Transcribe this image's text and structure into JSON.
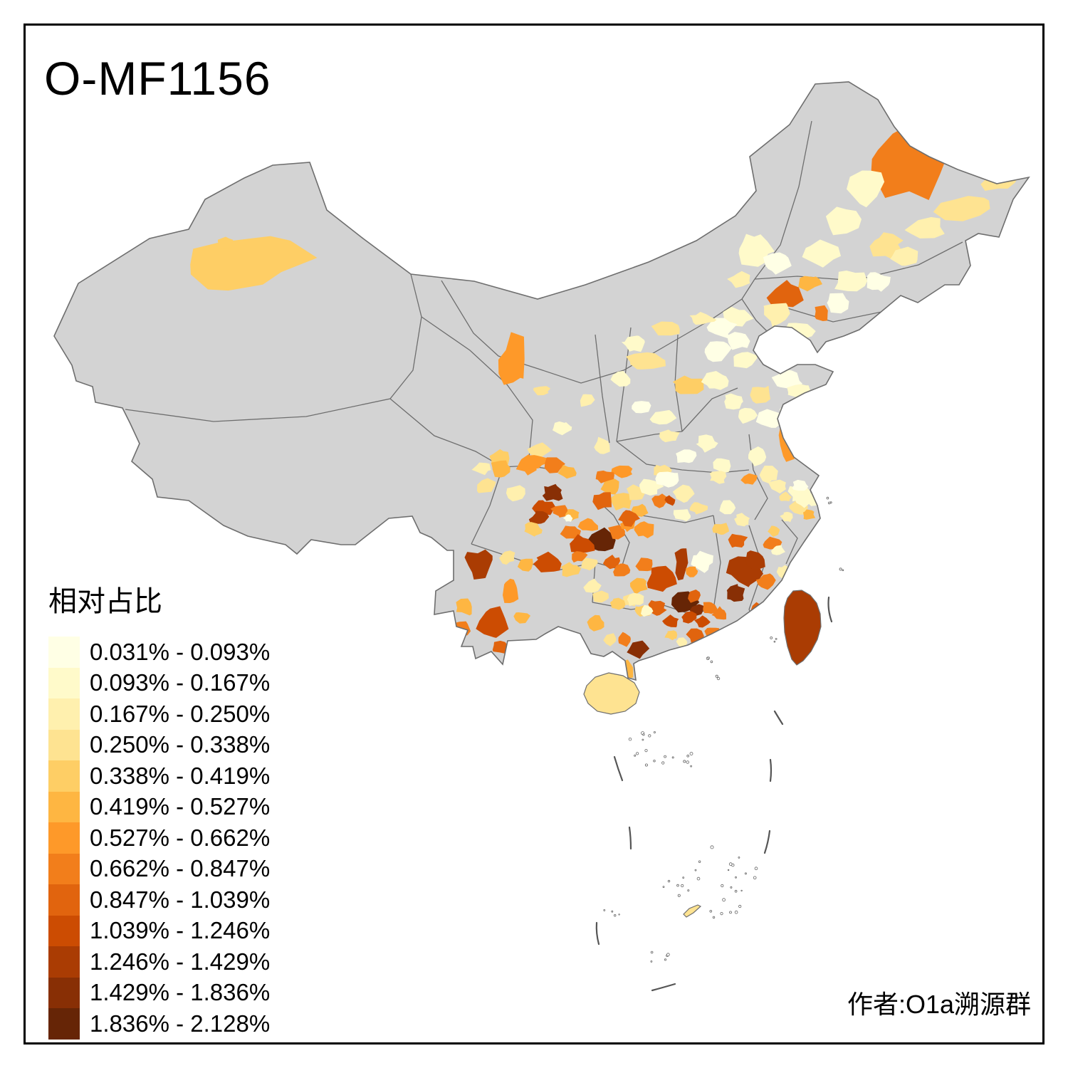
{
  "title": "O-MF1156",
  "legend": {
    "title": "相对占比"
  },
  "attribution": "作者:O1a溯源群",
  "map_colors": {
    "no_data": "#D3D3D3",
    "boundary": "#6E6E6E",
    "sea": "#FFFFFF",
    "frame": "#000000"
  },
  "chart_data": {
    "type": "heatmap",
    "subtype": "choropleth-map-of-china-prefectures",
    "title": "O-MF1156",
    "legend_title": "相对占比",
    "legend_position": "bottom-left",
    "attribution": "作者:O1a溯源群",
    "no_data_color": "#D3D3D3",
    "bins": [
      {
        "label": "0.031% - 0.093%",
        "color": "#FFFFE5"
      },
      {
        "label": "0.093% - 0.167%",
        "color": "#FFFACA"
      },
      {
        "label": "0.167% - 0.250%",
        "color": "#FFF0AE"
      },
      {
        "label": "0.250% - 0.338%",
        "color": "#FEE391"
      },
      {
        "label": "0.338% - 0.419%",
        "color": "#FECE65"
      },
      {
        "label": "0.419% - 0.527%",
        "color": "#FEB642"
      },
      {
        "label": "0.527% - 0.662%",
        "color": "#FE9929"
      },
      {
        "label": "0.662% - 0.847%",
        "color": "#F27E1B"
      },
      {
        "label": "0.847% - 1.039%",
        "color": "#E1640E"
      },
      {
        "label": "1.039% - 1.246%",
        "color": "#CC4C02"
      },
      {
        "label": "1.246% - 1.429%",
        "color": "#AA3C03"
      },
      {
        "label": "1.429% - 1.836%",
        "color": "#882F05"
      },
      {
        "label": "1.836% - 2.128%",
        "color": "#662506"
      }
    ],
    "regions_note": "each region = [x,y,bin,rx,ry,rot,seed] approximate prefecture patch position on 1500x1500 canvas, bin is 1-based index into bins",
    "regions": [
      [
        340,
        368,
        5,
        95,
        34,
        -4,
        1
      ],
      [
        318,
        341,
        5,
        11,
        8,
        0,
        2
      ],
      [
        1272,
        228,
        8,
        54,
        50,
        0,
        3
      ],
      [
        1408,
        254,
        4,
        28,
        13,
        -18,
        4
      ],
      [
        1352,
        292,
        4,
        36,
        16,
        -12,
        5
      ],
      [
        1300,
        322,
        3,
        28,
        15,
        -8,
        6
      ],
      [
        1218,
        262,
        2,
        24,
        26,
        0,
        7
      ],
      [
        1186,
        312,
        2,
        28,
        20,
        0,
        8
      ],
      [
        1242,
        346,
        4,
        24,
        18,
        0,
        9
      ],
      [
        1272,
        362,
        3,
        20,
        14,
        0,
        10
      ],
      [
        1060,
        350,
        2,
        28,
        23,
        0,
        11
      ],
      [
        1092,
        370,
        1,
        20,
        15,
        0,
        12
      ],
      [
        1150,
        356,
        2,
        26,
        18,
        0,
        13
      ],
      [
        1196,
        396,
        2,
        24,
        16,
        0,
        14
      ],
      [
        1232,
        396,
        1,
        18,
        13,
        0,
        15
      ],
      [
        1104,
        414,
        9,
        26,
        19,
        -20,
        16
      ],
      [
        1136,
        398,
        6,
        18,
        11,
        -15,
        17
      ],
      [
        1153,
        441,
        8,
        11,
        11,
        0,
        18
      ],
      [
        1121,
        463,
        2,
        22,
        13,
        0,
        19
      ],
      [
        1090,
        440,
        3,
        20,
        16,
        0,
        20
      ],
      [
        1176,
        426,
        1,
        18,
        13,
        0,
        21
      ],
      [
        1040,
        393,
        3,
        16,
        11,
        0,
        23
      ],
      [
        1036,
        446,
        2,
        20,
        14,
        0,
        24
      ],
      [
        1012,
        459,
        1,
        20,
        16,
        0,
        25
      ],
      [
        1038,
        478,
        1,
        16,
        13,
        0,
        26
      ],
      [
        986,
        448,
        3,
        18,
        9,
        0,
        27
      ],
      [
        938,
        461,
        4,
        22,
        11,
        0,
        28
      ],
      [
        906,
        508,
        4,
        28,
        13,
        0,
        29
      ],
      [
        1046,
        506,
        2,
        16,
        13,
        0,
        30
      ],
      [
        1008,
        493,
        1,
        18,
        14,
        0,
        31
      ],
      [
        966,
        541,
        5,
        24,
        12,
        0,
        32
      ],
      [
        1006,
        536,
        2,
        18,
        13,
        0,
        33
      ],
      [
        1031,
        563,
        2,
        16,
        11,
        0,
        34
      ],
      [
        891,
        483,
        2,
        16,
        11,
        0,
        35
      ],
      [
        873,
        533,
        2,
        14,
        11,
        0,
        36
      ],
      [
        1069,
        553,
        4,
        14,
        13,
        0,
        37
      ],
      [
        1106,
        533,
        1,
        20,
        13,
        0,
        38
      ],
      [
        1123,
        549,
        2,
        16,
        11,
        0,
        39
      ],
      [
        1083,
        589,
        1,
        20,
        13,
        0,
        40
      ],
      [
        1049,
        583,
        2,
        16,
        11,
        0,
        41
      ],
      [
        1109,
        576,
        1,
        16,
        9,
        0,
        42
      ],
      [
        931,
        586,
        2,
        16,
        11,
        0,
        169
      ],
      [
        901,
        571,
        1,
        14,
        9,
        0,
        170
      ],
      [
        722,
        509,
        7,
        20,
        38,
        0,
        43
      ],
      [
        823,
        563,
        3,
        11,
        9,
        0,
        44
      ],
      [
        846,
        626,
        3,
        14,
        11,
        0,
        45
      ],
      [
        756,
        633,
        4,
        16,
        11,
        0,
        46
      ],
      [
        741,
        653,
        7,
        16,
        13,
        0,
        47
      ],
      [
        701,
        643,
        5,
        16,
        11,
        0,
        48
      ],
      [
        677,
        658,
        3,
        13,
        9,
        0,
        49
      ],
      [
        761,
        549,
        4,
        11,
        7,
        0,
        171
      ],
      [
        791,
        601,
        2,
        13,
        9,
        0,
        172
      ],
      [
        941,
        613,
        3,
        14,
        9,
        0,
        50
      ],
      [
        963,
        641,
        1,
        16,
        11,
        0,
        51
      ],
      [
        993,
        623,
        2,
        16,
        11,
        0,
        52
      ],
      [
        931,
        661,
        4,
        13,
        9,
        0,
        53
      ],
      [
        1013,
        653,
        2,
        14,
        11,
        0,
        54
      ],
      [
        1009,
        669,
        3,
        13,
        9,
        0,
        55
      ],
      [
        1106,
        623,
        7,
        14,
        24,
        0,
        56
      ],
      [
        1063,
        641,
        2,
        16,
        13,
        0,
        57
      ],
      [
        1079,
        666,
        3,
        14,
        11,
        0,
        58
      ],
      [
        1123,
        691,
        2,
        16,
        13,
        0,
        59
      ],
      [
        1121,
        713,
        4,
        14,
        11,
        0,
        60
      ],
      [
        1053,
        673,
        7,
        11,
        9,
        0,
        61
      ],
      [
        1093,
        683,
        3,
        13,
        9,
        0,
        62
      ],
      [
        1146,
        701,
        2,
        13,
        9,
        0,
        63
      ],
      [
        873,
        703,
        5,
        16,
        13,
        0,
        64
      ],
      [
        894,
        693,
        4,
        14,
        11,
        0,
        65
      ],
      [
        859,
        683,
        6,
        14,
        11,
        0,
        66
      ],
      [
        913,
        683,
        2,
        16,
        11,
        0,
        67
      ],
      [
        939,
        673,
        1,
        16,
        11,
        0,
        68
      ],
      [
        959,
        693,
        3,
        14,
        11,
        0,
        69
      ],
      [
        979,
        713,
        4,
        13,
        9,
        0,
        70
      ],
      [
        873,
        663,
        7,
        14,
        9,
        0,
        71
      ],
      [
        849,
        669,
        8,
        13,
        9,
        0,
        72
      ],
      [
        848,
        703,
        9,
        14,
        13,
        0,
        73
      ],
      [
        958,
        723,
        2,
        14,
        9,
        0,
        74
      ],
      [
        749,
        649,
        7,
        18,
        13,
        0,
        75
      ],
      [
        779,
        653,
        8,
        16,
        11,
        0,
        76
      ],
      [
        796,
        663,
        6,
        13,
        9,
        0,
        77
      ],
      [
        703,
        658,
        6,
        14,
        11,
        0,
        78
      ],
      [
        683,
        683,
        4,
        14,
        11,
        0,
        79
      ],
      [
        723,
        693,
        3,
        14,
        11,
        0,
        80
      ],
      [
        777,
        692,
        12,
        14,
        12,
        0,
        81
      ],
      [
        763,
        713,
        10,
        14,
        11,
        0,
        82
      ],
      [
        757,
        728,
        11,
        13,
        10,
        0,
        83
      ],
      [
        788,
        718,
        8,
        13,
        9,
        0,
        84
      ],
      [
        803,
        723,
        6,
        11,
        9,
        0,
        85
      ],
      [
        748,
        743,
        5,
        13,
        9,
        0,
        86
      ],
      [
        801,
        748,
        8,
        13,
        10,
        0,
        87
      ],
      [
        827,
        738,
        7,
        13,
        10,
        0,
        88
      ],
      [
        798,
        728,
        1,
        6,
        5,
        0,
        89
      ],
      [
        846,
        759,
        13,
        20,
        17,
        0,
        90
      ],
      [
        816,
        766,
        10,
        18,
        15,
        0,
        91
      ],
      [
        867,
        747,
        8,
        13,
        9,
        0,
        92
      ],
      [
        883,
        737,
        7,
        11,
        9,
        0,
        93
      ],
      [
        906,
        743,
        7,
        14,
        11,
        0,
        94
      ],
      [
        898,
        717,
        6,
        11,
        9,
        0,
        95
      ],
      [
        928,
        703,
        8,
        11,
        9,
        0,
        96
      ],
      [
        941,
        703,
        10,
        7,
        7,
        0,
        97
      ],
      [
        769,
        791,
        10,
        20,
        14,
        0,
        98
      ],
      [
        738,
        793,
        6,
        13,
        9,
        0,
        99
      ],
      [
        713,
        783,
        4,
        11,
        9,
        0,
        100
      ],
      [
        673,
        793,
        11,
        18,
        22,
        -8,
        101
      ],
      [
        717,
        829,
        7,
        12,
        20,
        0,
        102
      ],
      [
        692,
        873,
        10,
        22,
        20,
        0,
        103
      ],
      [
        653,
        853,
        6,
        13,
        11,
        0,
        104
      ],
      [
        732,
        867,
        6,
        11,
        9,
        0,
        105
      ],
      [
        704,
        909,
        9,
        13,
        9,
        0,
        106
      ],
      [
        649,
        883,
        8,
        11,
        13,
        0,
        107
      ],
      [
        801,
        801,
        5,
        13,
        10,
        0,
        108
      ],
      [
        827,
        792,
        4,
        13,
        9,
        0,
        109
      ],
      [
        832,
        823,
        3,
        13,
        9,
        0,
        110
      ],
      [
        859,
        789,
        9,
        11,
        9,
        0,
        111
      ],
      [
        873,
        801,
        8,
        13,
        10,
        0,
        112
      ],
      [
        813,
        781,
        8,
        11,
        9,
        0,
        113
      ],
      [
        843,
        839,
        4,
        11,
        9,
        0,
        114
      ],
      [
        883,
        727,
        9,
        14,
        12,
        0,
        115
      ],
      [
        931,
        813,
        10,
        22,
        18,
        0,
        116
      ],
      [
        963,
        846,
        13,
        18,
        16,
        0,
        117
      ],
      [
        979,
        857,
        12,
        11,
        9,
        0,
        118
      ],
      [
        907,
        793,
        8,
        13,
        11,
        0,
        119
      ],
      [
        897,
        823,
        6,
        13,
        10,
        0,
        120
      ],
      [
        922,
        853,
        9,
        13,
        10,
        0,
        121
      ],
      [
        942,
        873,
        10,
        12,
        9,
        0,
        122
      ],
      [
        903,
        858,
        5,
        11,
        8,
        0,
        123
      ],
      [
        884,
        843,
        4,
        11,
        9,
        0,
        124
      ],
      [
        957,
        791,
        11,
        9,
        24,
        0,
        125
      ],
      [
        986,
        789,
        1,
        16,
        14,
        0,
        126
      ],
      [
        975,
        837,
        9,
        11,
        9,
        0,
        127
      ],
      [
        996,
        853,
        8,
        11,
        9,
        0,
        128
      ],
      [
        987,
        873,
        10,
        11,
        8,
        0,
        129
      ],
      [
        971,
        803,
        7,
        9,
        7,
        0,
        130
      ],
      [
        1047,
        801,
        11,
        24,
        26,
        0,
        131
      ],
      [
        1033,
        834,
        12,
        14,
        12,
        0,
        132
      ],
      [
        1036,
        759,
        9,
        13,
        11,
        0,
        133
      ],
      [
        1083,
        763,
        8,
        13,
        10,
        0,
        134
      ],
      [
        1061,
        786,
        11,
        16,
        14,
        0,
        135
      ],
      [
        1013,
        743,
        5,
        11,
        9,
        0,
        136
      ],
      [
        1023,
        713,
        2,
        13,
        11,
        0,
        137
      ],
      [
        1043,
        731,
        3,
        11,
        9,
        0,
        138
      ],
      [
        1076,
        816,
        8,
        13,
        11,
        0,
        139
      ],
      [
        1067,
        856,
        9,
        12,
        10,
        0,
        140
      ],
      [
        1097,
        843,
        4,
        9,
        8,
        0,
        141
      ],
      [
        1101,
        803,
        3,
        9,
        8,
        0,
        142
      ],
      [
        1093,
        773,
        2,
        9,
        8,
        0,
        143
      ],
      [
        1087,
        746,
        5,
        9,
        7,
        0,
        144
      ],
      [
        1106,
        726,
        3,
        9,
        7,
        0,
        145
      ],
      [
        1129,
        703,
        2,
        13,
        10,
        0,
        146
      ],
      [
        1103,
        698,
        4,
        9,
        7,
        0,
        147
      ],
      [
        1136,
        723,
        6,
        9,
        7,
        0,
        148
      ],
      [
        1123,
        683,
        1,
        11,
        8,
        0,
        149
      ],
      [
        1153,
        703,
        2,
        9,
        7,
        0,
        150
      ],
      [
        896,
        913,
        12,
        14,
        12,
        0,
        151
      ],
      [
        877,
        898,
        8,
        12,
        10,
        0,
        152
      ],
      [
        838,
        875,
        6,
        12,
        10,
        0,
        153
      ],
      [
        858,
        898,
        4,
        10,
        8,
        0,
        154
      ],
      [
        881,
        941,
        6,
        8,
        16,
        0,
        155
      ],
      [
        893,
        843,
        3,
        12,
        9,
        0,
        156
      ],
      [
        908,
        858,
        2,
        10,
        8,
        0,
        157
      ],
      [
        867,
        848,
        5,
        10,
        8,
        0,
        158
      ],
      [
        978,
        893,
        9,
        13,
        10,
        0,
        159
      ],
      [
        1002,
        888,
        8,
        12,
        9,
        0,
        160
      ],
      [
        992,
        908,
        7,
        11,
        8,
        0,
        161
      ],
      [
        957,
        902,
        3,
        9,
        7,
        0,
        162
      ],
      [
        943,
        892,
        5,
        9,
        7,
        0,
        163
      ],
      [
        967,
        868,
        10,
        11,
        9,
        0,
        164
      ],
      [
        1012,
        862,
        8,
        11,
        9,
        0,
        165
      ],
      [
        1042,
        882,
        6,
        11,
        9,
        0,
        166
      ],
      [
        1062,
        892,
        4,
        9,
        7,
        0,
        167
      ],
      [
        1027,
        897,
        2,
        9,
        7,
        0,
        168
      ]
    ],
    "island_regions": [
      {
        "island": "taiwan",
        "bin": 11
      },
      {
        "island": "hainan",
        "bin": 4
      },
      {
        "island": "scs_island",
        "bin": 4
      }
    ]
  }
}
